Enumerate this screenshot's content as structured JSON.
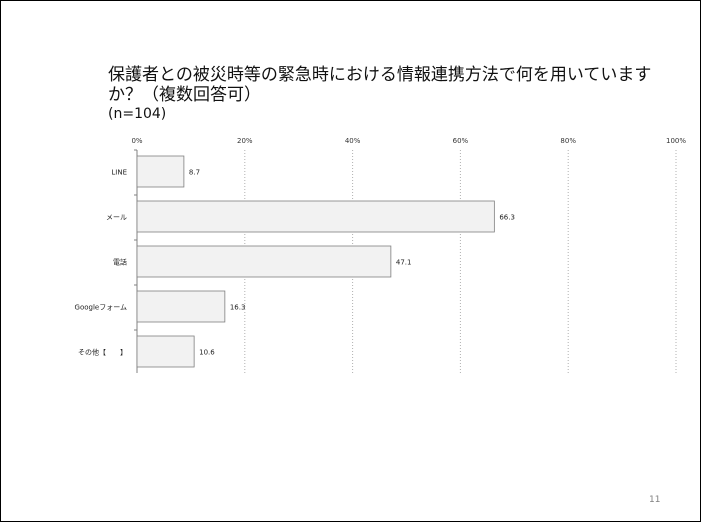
{
  "slide": {
    "title": "保護者との被災時等の緊急時における情報連携方法で何を用いていますか？（複数回答可）",
    "subtitle": "(n=104)",
    "page_number": "11"
  },
  "chart_data": {
    "type": "bar",
    "orientation": "horizontal",
    "categories": [
      "LINE",
      "メール",
      "電話",
      "Googleフォーム",
      "その他【　　】"
    ],
    "values": [
      8.7,
      66.3,
      47.1,
      16.3,
      10.6
    ],
    "value_labels": [
      "8.7",
      "66.3",
      "47.1",
      "16.3",
      "10.6"
    ],
    "x_ticks": [
      "0%",
      "20%",
      "40%",
      "60%",
      "80%",
      "100%"
    ],
    "xlim": [
      0,
      100
    ],
    "x_axis_position": "top",
    "grid": true,
    "grid_style": "dotted",
    "colors": {
      "bar_fill": "#f2f2f2",
      "bar_stroke": "#7f7f7f",
      "grid": "#b0b0b0",
      "axis": "#808080"
    }
  }
}
